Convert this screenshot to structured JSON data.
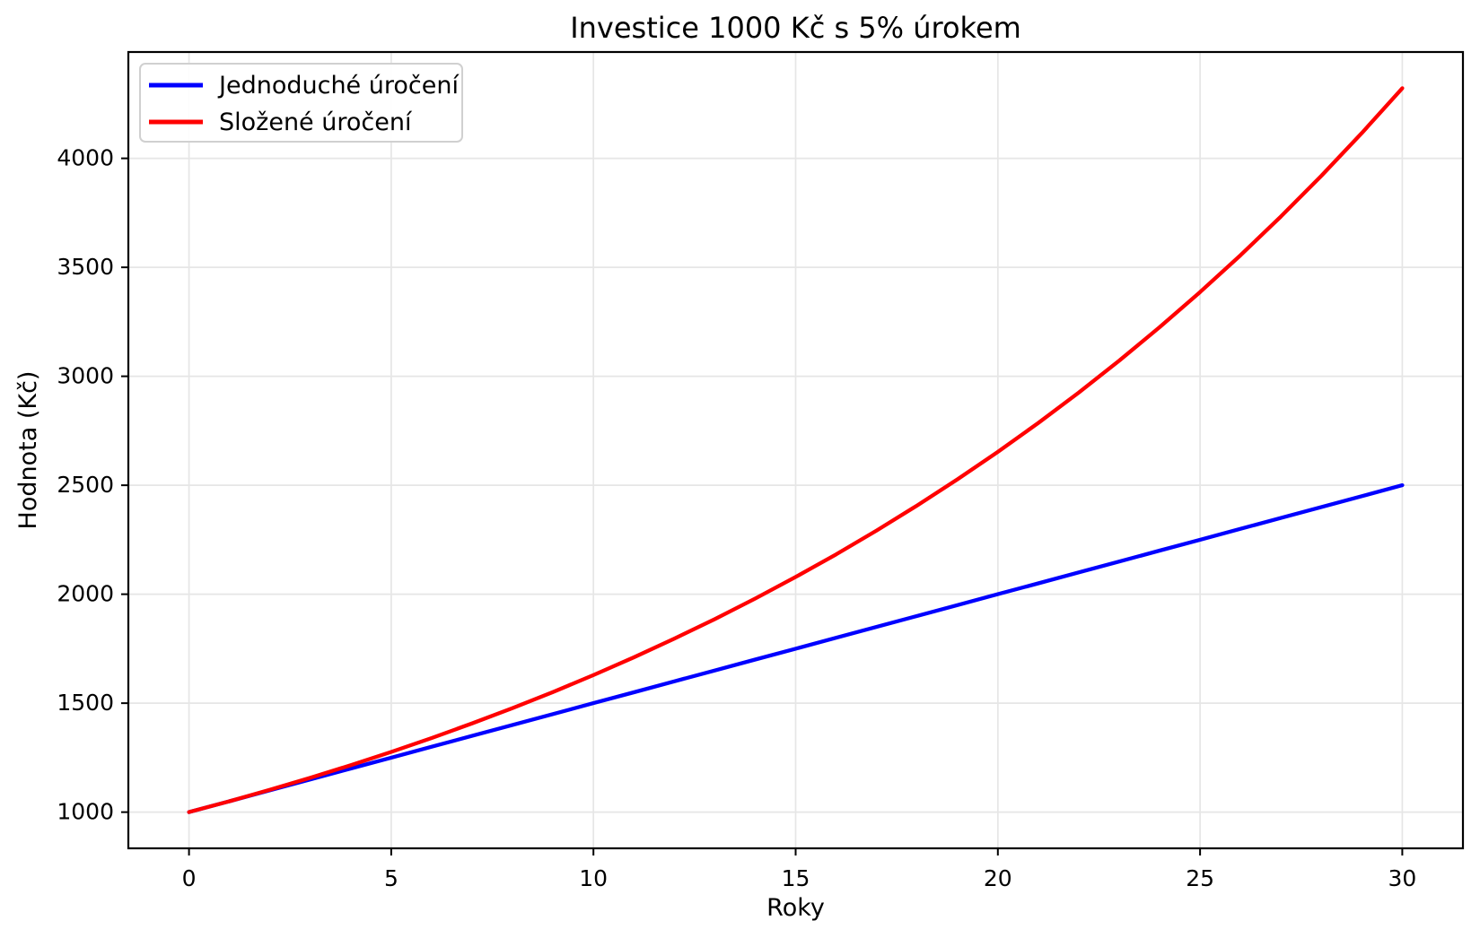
{
  "chart_data": {
    "type": "line",
    "title": "Investice 1000 Kč s 5% úrokem",
    "xlabel": "Roky",
    "ylabel": "Hodnota (Kč)",
    "x": [
      0,
      1,
      2,
      3,
      4,
      5,
      6,
      7,
      8,
      9,
      10,
      11,
      12,
      13,
      14,
      15,
      16,
      17,
      18,
      19,
      20,
      21,
      22,
      23,
      24,
      25,
      26,
      27,
      28,
      29,
      30
    ],
    "series": [
      {
        "name": "Jednoduché úročení",
        "color": "#0000ff",
        "values": [
          1000,
          1050,
          1100,
          1150,
          1200,
          1250,
          1300,
          1350,
          1400,
          1450,
          1500,
          1550,
          1600,
          1650,
          1700,
          1750,
          1800,
          1850,
          1900,
          1950,
          2000,
          2050,
          2100,
          2150,
          2200,
          2250,
          2300,
          2350,
          2400,
          2450,
          2500
        ]
      },
      {
        "name": "Složené úročení",
        "color": "#ff0000",
        "values": [
          1000,
          1050,
          1102.5,
          1157.63,
          1215.51,
          1276.28,
          1340.1,
          1407.1,
          1477.46,
          1551.33,
          1628.89,
          1710.34,
          1795.86,
          1885.65,
          1979.93,
          2078.93,
          2182.87,
          2292.02,
          2406.62,
          2526.95,
          2653.3,
          2785.96,
          2925.26,
          3071.52,
          3225.1,
          3386.35,
          3555.67,
          3733.46,
          3920.13,
          4116.14,
          4321.94
        ]
      }
    ],
    "xticks": [
      0,
      5,
      10,
      15,
      20,
      25,
      30
    ],
    "yticks": [
      1000,
      1500,
      2000,
      2500,
      3000,
      3500,
      4000
    ],
    "xlim": [
      -1.5,
      31.5
    ],
    "ylim": [
      833.9,
      4488.0
    ],
    "grid": true,
    "grid_color": "#e6e6e6",
    "axis_color": "#000000",
    "legend_position": "upper left"
  }
}
